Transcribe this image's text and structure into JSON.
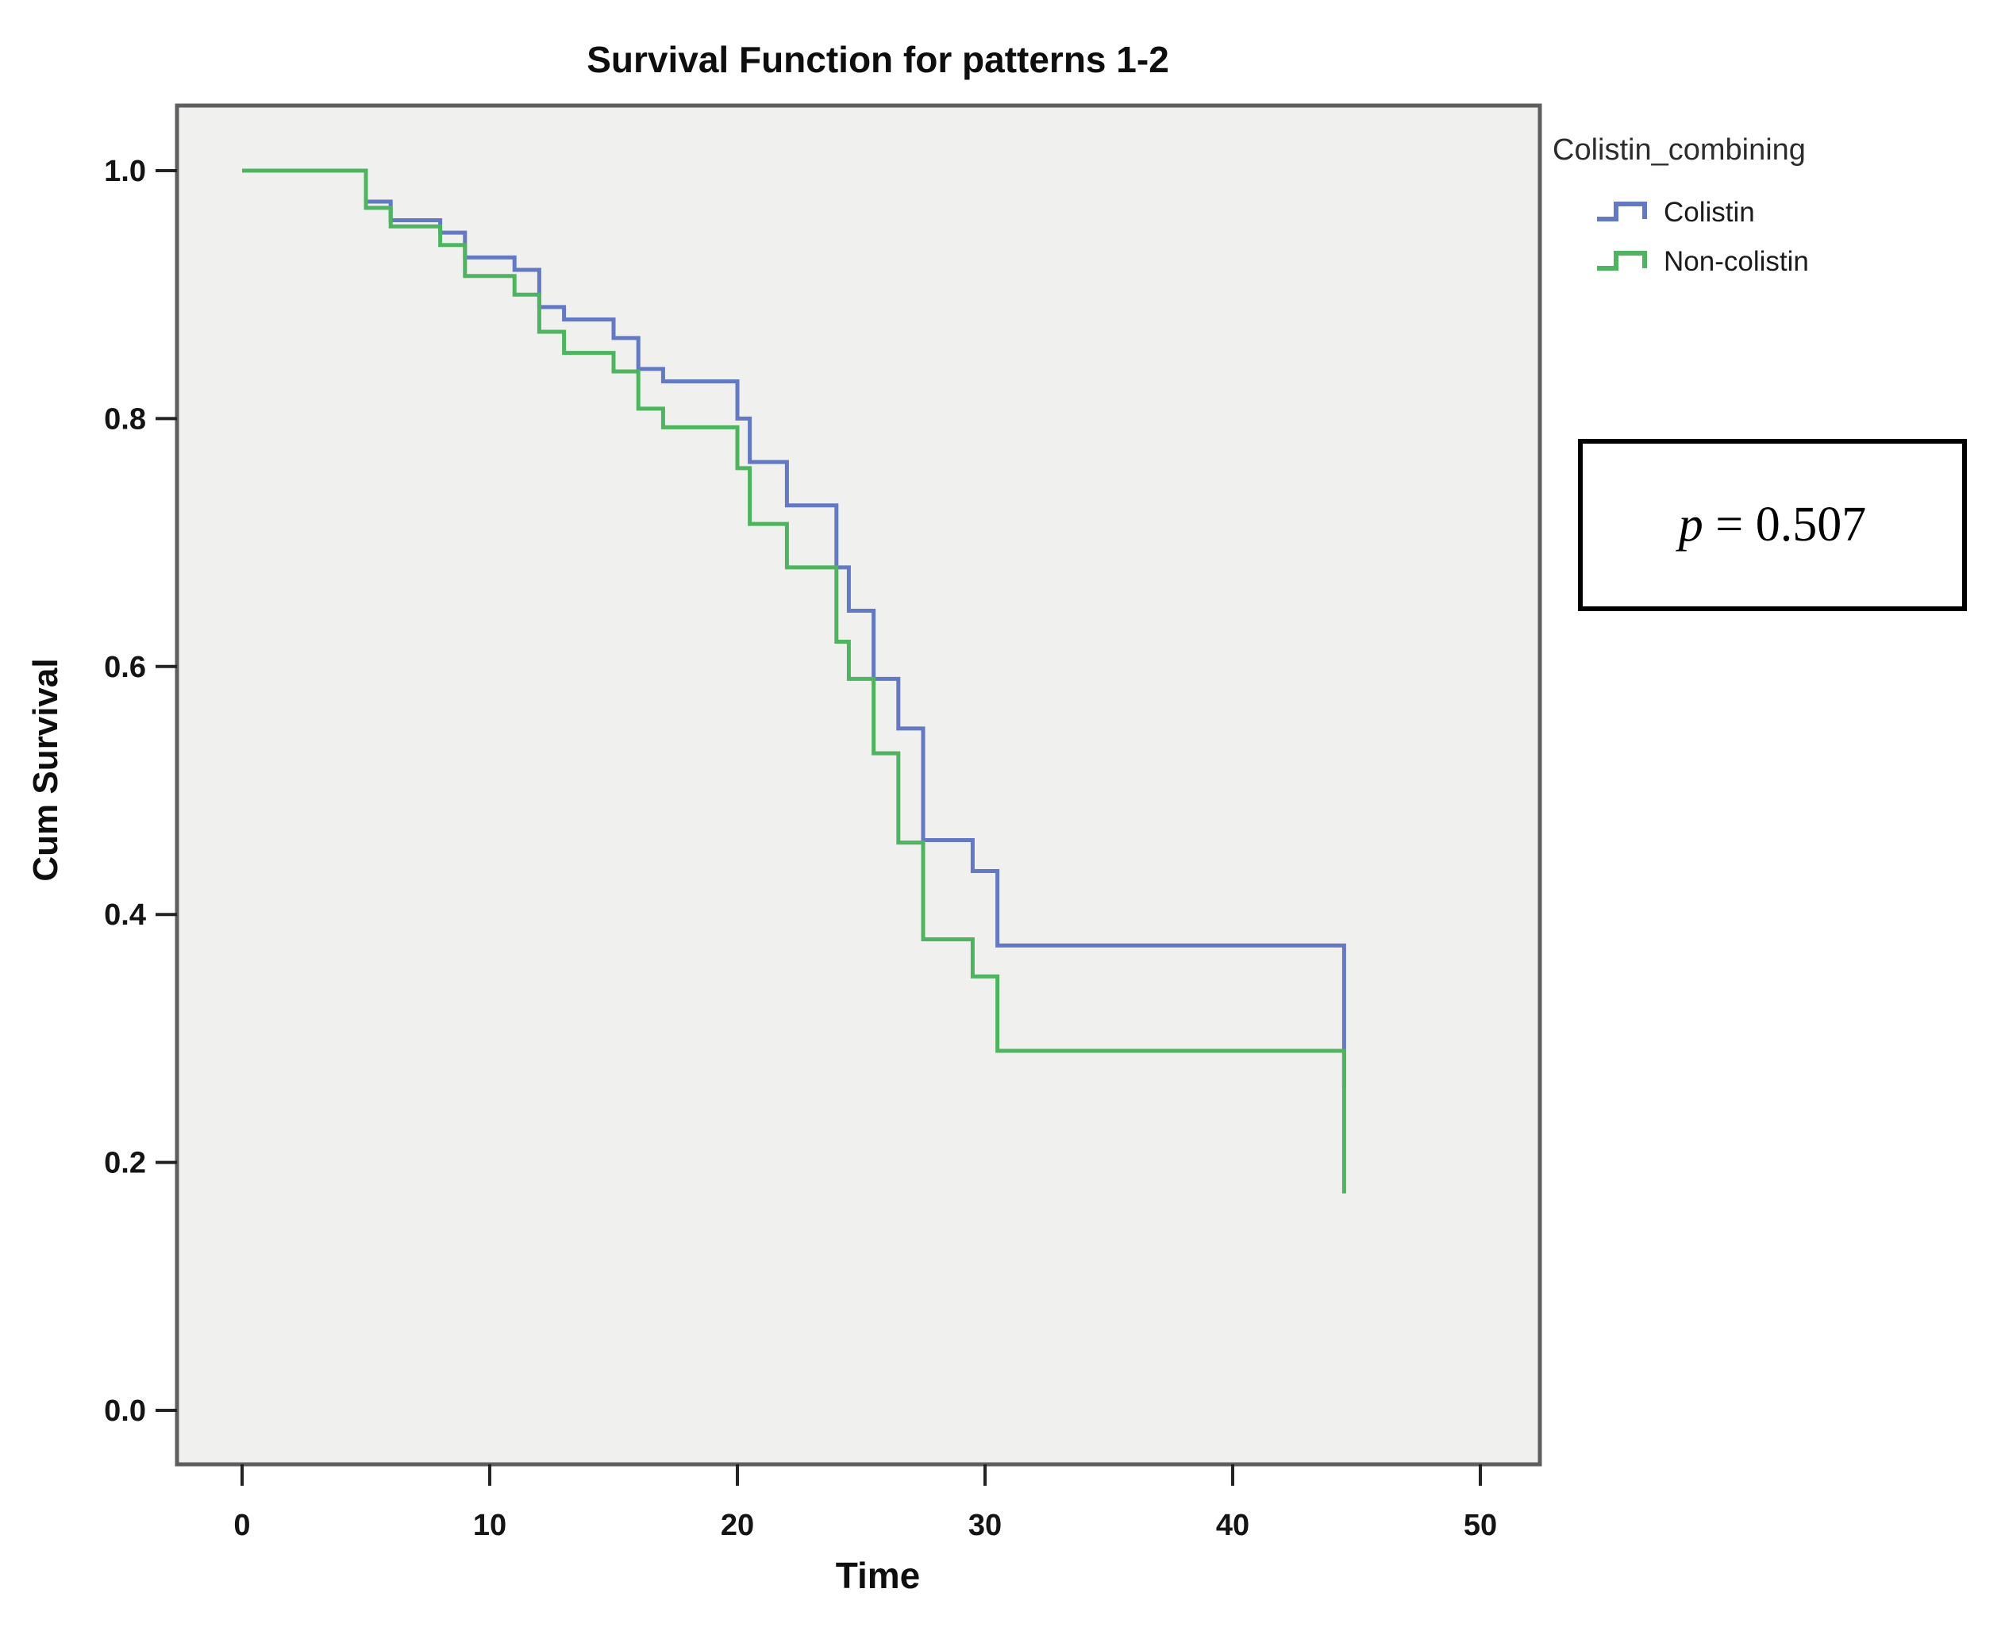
{
  "title": "Survival Function for patterns 1-2",
  "axes": {
    "y_label": "Cum Survival",
    "x_label": "Time"
  },
  "legend": {
    "title": "Colistin_combining",
    "items": [
      {
        "label": "Colistin",
        "color": "#6379C4"
      },
      {
        "label": "Non-colistin",
        "color": "#4EB45F"
      }
    ]
  },
  "pvalue": {
    "variable": "p",
    "equation": " = 0.507",
    "full_text": "p = 0.507"
  },
  "chart_data": {
    "type": "line",
    "subtype": "kaplan-meier-step-survival",
    "title": "Survival Function for patterns 1-2",
    "xlabel": "Time",
    "ylabel": "Cum Survival",
    "xlim": [
      -2.6,
      53.5
    ],
    "ylim": [
      -0.07,
      1.08
    ],
    "x_ticks": [
      0,
      10,
      20,
      30,
      40,
      50
    ],
    "y_ticks": [
      0.0,
      0.2,
      0.4,
      0.6,
      0.8,
      1.0
    ],
    "x_tick_labels": [
      "0",
      "10",
      "20",
      "30",
      "40",
      "50"
    ],
    "y_tick_labels": [
      "0.0",
      "0.2",
      "0.4",
      "0.6",
      "0.8",
      "1.0"
    ],
    "grid": false,
    "plot_background": "#F0F0EF",
    "frame_color": "#5E5E5E",
    "tick_color": "#222222",
    "legend_position": "outside-top-right",
    "annotation": "p = 0.507",
    "series": [
      {
        "name": "Colistin",
        "color": "#6379C4",
        "points": [
          [
            0,
            1.0
          ],
          [
            5,
            0.975
          ],
          [
            6,
            0.96
          ],
          [
            8,
            0.95
          ],
          [
            9,
            0.93
          ],
          [
            11,
            0.92
          ],
          [
            12,
            0.89
          ],
          [
            13,
            0.88
          ],
          [
            15,
            0.865
          ],
          [
            16,
            0.84
          ],
          [
            17,
            0.83
          ],
          [
            20,
            0.8
          ],
          [
            20.5,
            0.765
          ],
          [
            22,
            0.73
          ],
          [
            24,
            0.68
          ],
          [
            24.5,
            0.645
          ],
          [
            25.5,
            0.59
          ],
          [
            26.5,
            0.55
          ],
          [
            27.5,
            0.46
          ],
          [
            29.5,
            0.435
          ],
          [
            30.5,
            0.375
          ],
          [
            44.5,
            0.26
          ]
        ]
      },
      {
        "name": "Non-colistin",
        "color": "#4EB45F",
        "points": [
          [
            0,
            1.0
          ],
          [
            5,
            0.97
          ],
          [
            6,
            0.955
          ],
          [
            8,
            0.94
          ],
          [
            9,
            0.915
          ],
          [
            11,
            0.9
          ],
          [
            12,
            0.87
          ],
          [
            13,
            0.853
          ],
          [
            15,
            0.838
          ],
          [
            16,
            0.808
          ],
          [
            17,
            0.793
          ],
          [
            20,
            0.76
          ],
          [
            20.5,
            0.715
          ],
          [
            22,
            0.68
          ],
          [
            24,
            0.62
          ],
          [
            24.5,
            0.59
          ],
          [
            25.5,
            0.53
          ],
          [
            26.5,
            0.458
          ],
          [
            27.5,
            0.38
          ],
          [
            29.5,
            0.35
          ],
          [
            30.5,
            0.29
          ],
          [
            44.5,
            0.175
          ]
        ]
      }
    ]
  }
}
